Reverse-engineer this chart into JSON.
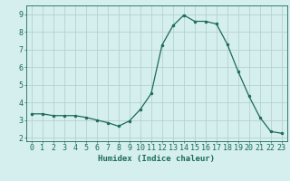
{
  "x": [
    0,
    1,
    2,
    3,
    4,
    5,
    6,
    7,
    8,
    9,
    10,
    11,
    12,
    13,
    14,
    15,
    16,
    17,
    18,
    19,
    20,
    21,
    22,
    23
  ],
  "y": [
    3.35,
    3.35,
    3.25,
    3.25,
    3.25,
    3.15,
    3.0,
    2.85,
    2.65,
    2.95,
    3.6,
    4.5,
    7.25,
    8.35,
    8.95,
    8.6,
    8.6,
    8.45,
    7.3,
    5.75,
    4.35,
    3.15,
    2.35,
    2.25
  ],
  "line_color": "#1a6b5a",
  "marker": "o",
  "marker_size": 2.0,
  "bg_color": "#d5eeee",
  "grid_color": "#b0cccc",
  "xlabel": "Humidex (Indice chaleur)",
  "ylabel": "",
  "xlim": [
    -0.5,
    23.5
  ],
  "ylim": [
    1.8,
    9.5
  ],
  "xlabel_fontsize": 6.5,
  "tick_fontsize": 6.0,
  "yticks": [
    2,
    3,
    4,
    5,
    6,
    7,
    8,
    9
  ]
}
